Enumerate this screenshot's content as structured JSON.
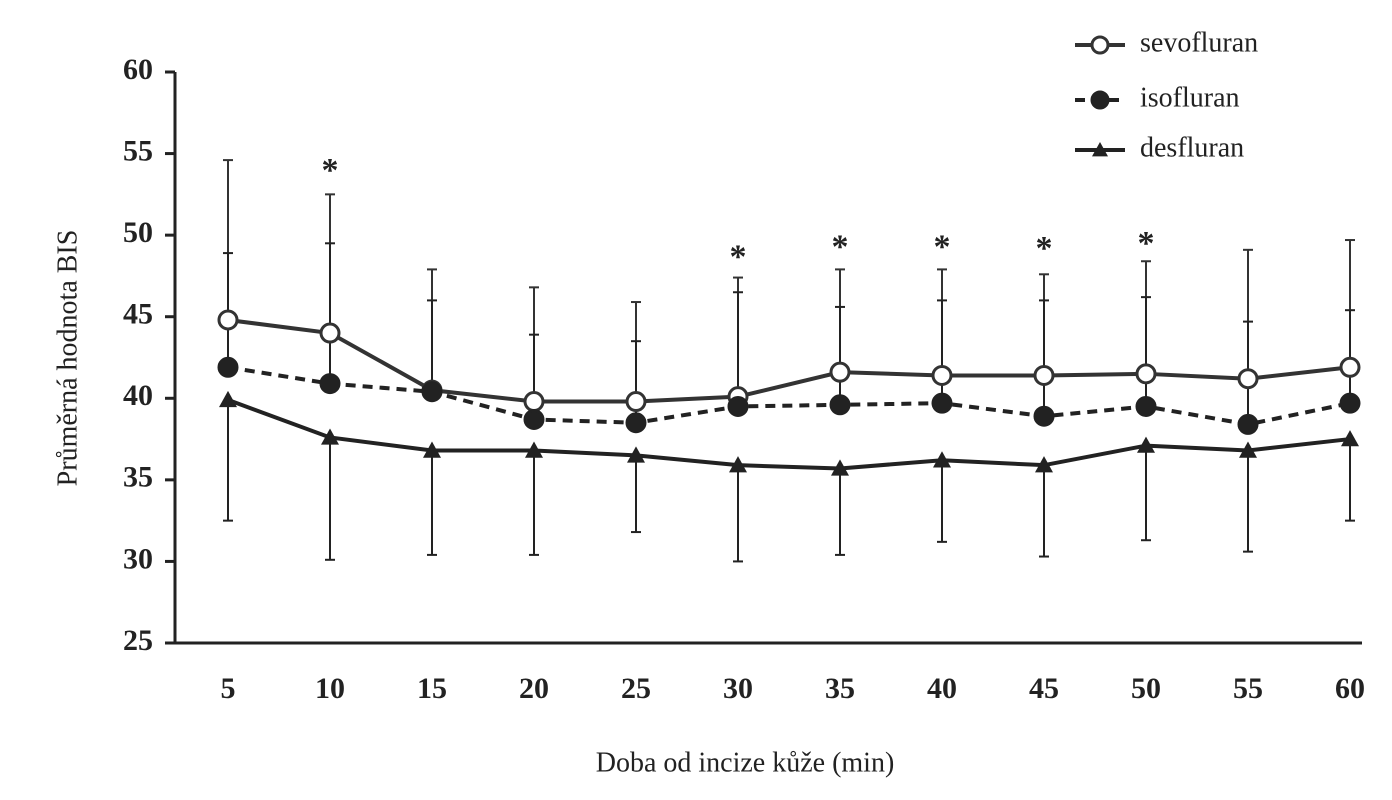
{
  "chart_data": {
    "type": "line",
    "x_label": "Doba od incize kůže (min)",
    "y_label": "Průměrná hodnota BIS",
    "categories": [
      "5",
      "10",
      "15",
      "20",
      "25",
      "30",
      "35",
      "40",
      "45",
      "50",
      "55",
      "60"
    ],
    "ylim": [
      25,
      60
    ],
    "yticks": [
      25,
      30,
      35,
      40,
      45,
      50,
      55,
      60
    ],
    "legend_position": "upper right",
    "series": [
      {
        "name": "sevofluran",
        "color": "#333333",
        "marker": "open-circle",
        "dashed": false,
        "error_direction": "up",
        "values": [
          44.8,
          44.0,
          40.5,
          39.8,
          39.8,
          40.1,
          41.6,
          41.4,
          41.4,
          41.5,
          41.2,
          41.9
        ],
        "errors": [
          9.8,
          8.5,
          7.4,
          7.0,
          6.1,
          7.3,
          6.3,
          6.5,
          6.2,
          6.9,
          7.9,
          7.8
        ]
      },
      {
        "name": "isofluran",
        "color": "#222222",
        "marker": "filled-circle",
        "dashed": true,
        "error_direction": "up",
        "values": [
          41.9,
          40.9,
          40.4,
          38.7,
          38.5,
          39.5,
          39.6,
          39.7,
          38.9,
          39.5,
          38.4,
          39.7
        ],
        "errors": [
          7.0,
          8.6,
          5.6,
          5.2,
          5.0,
          7.0,
          6.0,
          6.3,
          7.1,
          6.7,
          6.3,
          5.7
        ]
      },
      {
        "name": "desfluran",
        "color": "#222222",
        "marker": "triangle",
        "dashed": false,
        "error_direction": "down",
        "values": [
          39.9,
          37.6,
          36.8,
          36.8,
          36.5,
          35.9,
          35.7,
          36.2,
          35.9,
          37.1,
          36.8,
          37.5
        ],
        "errors": [
          7.4,
          7.5,
          6.4,
          6.4,
          4.7,
          5.9,
          5.3,
          5.0,
          5.6,
          5.8,
          6.2,
          5.0
        ]
      }
    ],
    "annotations": [
      {
        "text": "*",
        "category": 1,
        "y": 54.3
      },
      {
        "text": "*",
        "category": 5,
        "y": 49.0
      },
      {
        "text": "*",
        "category": 6,
        "y": 49.6
      },
      {
        "text": "*",
        "category": 7,
        "y": 49.6
      },
      {
        "text": "*",
        "category": 8,
        "y": 49.5
      },
      {
        "text": "*",
        "category": 9,
        "y": 49.8
      }
    ]
  }
}
